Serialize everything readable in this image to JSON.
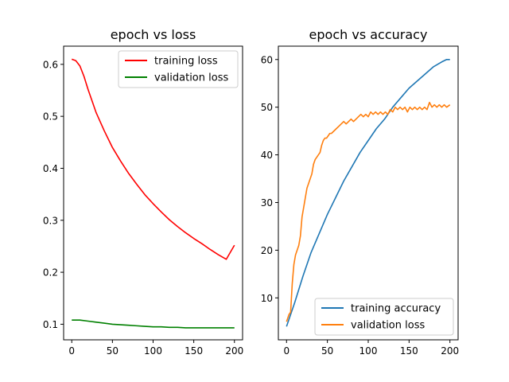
{
  "chart_data": [
    {
      "type": "line",
      "title": "epoch vs loss",
      "xlabel": "",
      "ylabel": "",
      "xlim": [
        -10,
        210
      ],
      "ylim": [
        0.07,
        0.635
      ],
      "xticks": [
        0,
        50,
        100,
        150,
        200
      ],
      "yticks": [
        0.1,
        0.2,
        0.3,
        0.4,
        0.5,
        0.6
      ],
      "grid": false,
      "legend_position": "top-right",
      "series": [
        {
          "name": "training loss",
          "color": "#ff0000",
          "x": [
            0,
            5,
            10,
            15,
            20,
            30,
            40,
            50,
            60,
            70,
            80,
            90,
            100,
            110,
            120,
            130,
            140,
            150,
            160,
            170,
            180,
            190,
            200
          ],
          "values": [
            0.61,
            0.607,
            0.597,
            0.577,
            0.552,
            0.507,
            0.472,
            0.44,
            0.414,
            0.39,
            0.369,
            0.349,
            0.332,
            0.316,
            0.301,
            0.288,
            0.276,
            0.265,
            0.255,
            0.244,
            0.234,
            0.225,
            0.252
          ]
        },
        {
          "name": "validation loss",
          "color": "#008000",
          "x": [
            0,
            10,
            20,
            30,
            40,
            50,
            60,
            70,
            80,
            90,
            100,
            110,
            120,
            130,
            140,
            150,
            160,
            170,
            180,
            190,
            200
          ],
          "values": [
            0.108,
            0.108,
            0.106,
            0.104,
            0.102,
            0.1,
            0.099,
            0.098,
            0.097,
            0.096,
            0.095,
            0.095,
            0.094,
            0.094,
            0.093,
            0.093,
            0.093,
            0.093,
            0.093,
            0.093,
            0.093
          ]
        }
      ]
    },
    {
      "type": "line",
      "title": "epoch vs accuracy",
      "xlabel": "",
      "ylabel": "",
      "xlim": [
        -10,
        210
      ],
      "ylim": [
        1.2,
        62.8
      ],
      "xticks": [
        0,
        50,
        100,
        150,
        200
      ],
      "yticks": [
        10,
        20,
        30,
        40,
        50,
        60
      ],
      "grid": false,
      "legend_position": "bottom-right",
      "series": [
        {
          "name": "training accuracy",
          "color": "#1f77b4",
          "x": [
            0,
            10,
            20,
            30,
            40,
            50,
            60,
            70,
            80,
            90,
            100,
            110,
            120,
            130,
            140,
            150,
            160,
            170,
            180,
            190,
            196,
            200
          ],
          "values": [
            4,
            9,
            14.5,
            19.5,
            23.5,
            27.5,
            31,
            34.5,
            37.5,
            40.5,
            43,
            45.5,
            47.5,
            50,
            52,
            54,
            55.5,
            57,
            58.5,
            59.5,
            60,
            60
          ]
        },
        {
          "name": "validation loss",
          "color": "#ff7f0e",
          "x": [
            0,
            3,
            5,
            7,
            9,
            11,
            13,
            15,
            17,
            19,
            21,
            23,
            25,
            27,
            29,
            31,
            33,
            35,
            37,
            39,
            41,
            43,
            45,
            47,
            49,
            51,
            53,
            55,
            58,
            61,
            64,
            67,
            70,
            73,
            76,
            79,
            82,
            85,
            88,
            91,
            94,
            97,
            100,
            103,
            106,
            109,
            112,
            115,
            118,
            121,
            124,
            127,
            130,
            133,
            136,
            139,
            142,
            145,
            148,
            151,
            154,
            157,
            160,
            163,
            166,
            169,
            172,
            175,
            178,
            181,
            184,
            187,
            190,
            193,
            196,
            200
          ],
          "values": [
            5,
            6.5,
            7,
            13,
            17,
            19,
            20,
            21,
            23,
            27,
            29,
            31,
            33,
            34,
            35,
            36,
            38,
            39,
            39.5,
            40,
            40.5,
            42,
            43,
            43.5,
            43.5,
            44,
            44.5,
            44.5,
            45,
            45.5,
            46,
            46.5,
            47,
            46.5,
            47,
            47.5,
            47,
            47.5,
            48,
            48.5,
            48,
            48.5,
            48,
            49,
            48.5,
            49,
            48.5,
            49,
            48.5,
            49,
            48.5,
            49.5,
            49,
            50,
            49.5,
            50,
            49.5,
            50,
            49,
            50,
            49.5,
            50,
            49.5,
            50,
            49.5,
            50,
            49.5,
            51,
            50,
            50.5,
            50,
            50.5,
            50,
            50.5,
            50,
            50.5
          ]
        }
      ]
    }
  ]
}
